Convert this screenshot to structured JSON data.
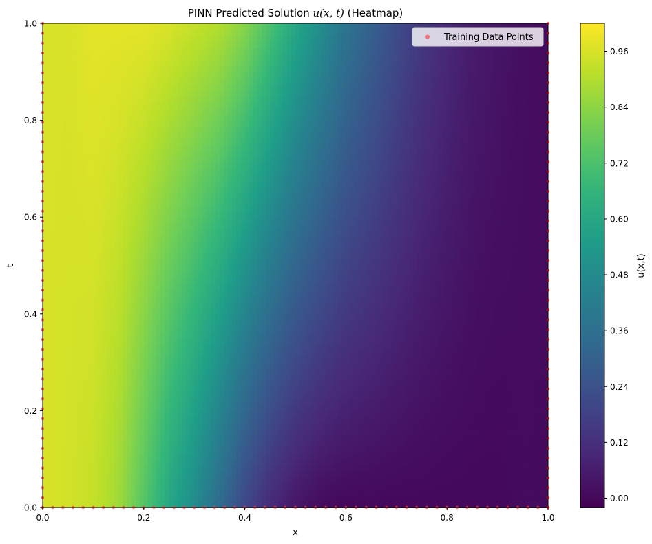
{
  "chart_data": {
    "type": "heatmap",
    "title": "PINN Predicted Solution u(x, t) (Heatmap)",
    "title_parts": {
      "prefix": "PINN Predicted Solution ",
      "math": "u(x, t)",
      "suffix": " (Heatmap)"
    },
    "xlabel": "x",
    "ylabel": "t",
    "xlim": [
      0.0,
      1.0
    ],
    "ylim": [
      0.0,
      1.0
    ],
    "x_ticks": [
      "0.0",
      "0.2",
      "0.4",
      "0.6",
      "0.8",
      "1.0"
    ],
    "y_ticks": [
      "0.0",
      "0.2",
      "0.4",
      "0.6",
      "0.8",
      "1.0"
    ],
    "colormap": "viridis",
    "colorbar": {
      "label": "u(x,t)",
      "range": [
        -0.02,
        1.02
      ],
      "ticks": [
        "0.00",
        "0.12",
        "0.24",
        "0.36",
        "0.48",
        "0.60",
        "0.72",
        "0.84",
        "0.96"
      ]
    },
    "value_profile_x": [
      0.0,
      0.05,
      0.1,
      0.15,
      0.2,
      0.25,
      0.3,
      0.35,
      0.4,
      0.45,
      0.5,
      0.55,
      0.6,
      0.65,
      0.7,
      0.75,
      0.8,
      0.85,
      0.9,
      0.95,
      1.0
    ],
    "value_profile_t0": [
      0.96,
      0.95,
      0.93,
      0.87,
      0.74,
      0.6,
      0.48,
      0.34,
      0.2,
      0.1,
      0.04,
      0.01,
      0.0,
      0.0,
      0.0,
      0.0,
      0.0,
      0.0,
      0.0,
      0.01,
      0.01
    ],
    "value_profile_t1": [
      0.96,
      0.96,
      0.98,
      0.98,
      0.98,
      0.96,
      0.93,
      0.9,
      0.83,
      0.72,
      0.6,
      0.49,
      0.38,
      0.3,
      0.22,
      0.15,
      0.1,
      0.06,
      0.04,
      0.02,
      0.01
    ],
    "grid": false,
    "legend": {
      "placement": "upper right",
      "entries": [
        "Training Data Points"
      ]
    },
    "training_points": {
      "name": "Training Data Points",
      "color": "#ff3b3b",
      "boundary_x0_t": [
        0.0,
        0.0204,
        0.0408,
        0.0612,
        0.0816,
        0.102,
        0.1224,
        0.1429,
        0.1633,
        0.1837,
        0.2041,
        0.2245,
        0.2449,
        0.2653,
        0.2857,
        0.3061,
        0.3265,
        0.3469,
        0.3673,
        0.3878,
        0.4082,
        0.4286,
        0.449,
        0.4694,
        0.4898,
        0.5102,
        0.5306,
        0.551,
        0.5714,
        0.5918,
        0.6122,
        0.6327,
        0.6531,
        0.6735,
        0.6939,
        0.7143,
        0.7347,
        0.7551,
        0.7755,
        0.7959,
        0.8163,
        0.8367,
        0.8571,
        0.8776,
        0.898,
        0.9184,
        0.9388,
        0.9592,
        0.9796,
        1.0
      ],
      "boundary_x1_t": [
        0.0,
        0.0204,
        0.0408,
        0.0612,
        0.0816,
        0.102,
        0.1224,
        0.1429,
        0.1633,
        0.1837,
        0.2041,
        0.2245,
        0.2449,
        0.2653,
        0.2857,
        0.3061,
        0.3265,
        0.3469,
        0.3673,
        0.3878,
        0.4082,
        0.4286,
        0.449,
        0.4694,
        0.4898,
        0.5102,
        0.5306,
        0.551,
        0.5714,
        0.5918,
        0.6122,
        0.6327,
        0.6531,
        0.6735,
        0.6939,
        0.7143,
        0.7347,
        0.7551,
        0.7755,
        0.7959,
        0.8163,
        0.8367,
        0.8571,
        0.8776,
        0.898,
        0.9184,
        0.9388,
        0.9592,
        0.9796,
        1.0
      ],
      "initial_t0_x": [
        0.0,
        0.02,
        0.04,
        0.06,
        0.08,
        0.1,
        0.12,
        0.14,
        0.16,
        0.18,
        0.2,
        0.22,
        0.24,
        0.26,
        0.28,
        0.3,
        0.32,
        0.34,
        0.36,
        0.38,
        0.4,
        0.42,
        0.44,
        0.46,
        0.48,
        0.5,
        0.52,
        0.54,
        0.56,
        0.58,
        0.6,
        0.62,
        0.64,
        0.66,
        0.68,
        0.7,
        0.72,
        0.74,
        0.76,
        0.78,
        0.8,
        0.82,
        0.84,
        0.86,
        0.88,
        0.9,
        0.92,
        0.94,
        0.96,
        0.98,
        1.0
      ]
    }
  }
}
